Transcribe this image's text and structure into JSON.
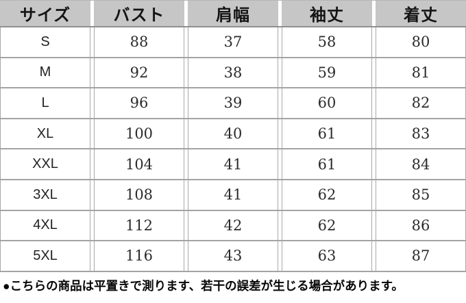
{
  "chart_data": {
    "type": "table",
    "title": "",
    "columns": [
      "サイズ",
      "バスト",
      "肩幅",
      "袖丈",
      "着丈"
    ],
    "rows": [
      [
        "S",
        "88",
        "37",
        "58",
        "80"
      ],
      [
        "M",
        "92",
        "38",
        "59",
        "81"
      ],
      [
        "L",
        "96",
        "39",
        "60",
        "82"
      ],
      [
        "XL",
        "100",
        "40",
        "61",
        "83"
      ],
      [
        "XXL",
        "104",
        "41",
        "61",
        "84"
      ],
      [
        "3XL",
        "108",
        "41",
        "62",
        "85"
      ],
      [
        "4XL",
        "112",
        "42",
        "62",
        "86"
      ],
      [
        "5XL",
        "116",
        "43",
        "63",
        "87"
      ]
    ]
  },
  "note": "●こちらの商品は平置きで測ります、若干の誤差が生じる場合があります。",
  "colors": {
    "header_bg": "#c6c6c6",
    "border": "#a3a3a3",
    "header_text": "#151515",
    "cell_text": "#2b2b2b"
  }
}
